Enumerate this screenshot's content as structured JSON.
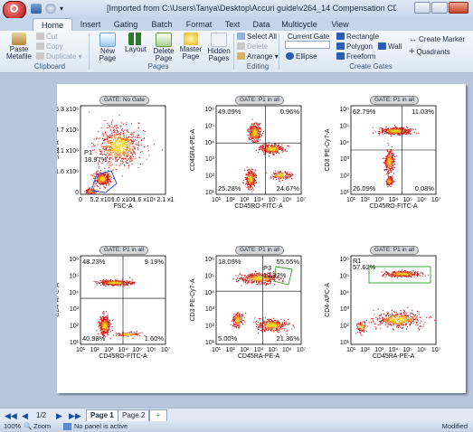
{
  "window": {
    "title": "[Imported from C:\\Users\\Tanya\\Desktop\\Accuri guide\\v264_14 Compensation CD45RO-RA-3-4.c6]"
  },
  "tabs": [
    "Home",
    "Insert",
    "Gating",
    "Batch",
    "Format",
    "Text",
    "Data",
    "Multicycle",
    "View"
  ],
  "ribbon": {
    "clipboard": {
      "paste": "Paste",
      "metafile": "Metafile",
      "cut": "Cut",
      "copy": "Copy",
      "duplicate": "Duplicate",
      "label": "Clipboard"
    },
    "pages": {
      "new_page": "New",
      "new_page2": "Page",
      "layout": "Layout",
      "delete_page": "Delete",
      "delete_page2": "Page",
      "master_page": "Master",
      "master_page2": "Page",
      "hidden_pages": "Hidden",
      "hidden_pages2": "Pages",
      "label": "Pages"
    },
    "editing": {
      "select_all": "Select All",
      "delete": "Delete",
      "arrange": "Arrange",
      "label": "Editing"
    },
    "create_gates": {
      "current_gate": "Current Gate",
      "rectangle": "Rectangle",
      "polygon": "Polygon",
      "wall": "Wall",
      "ellipse": "Ellipse",
      "freeform": "Freeform",
      "create_marker": "Create Marker",
      "quadrants": "Quadrants",
      "label": "Create Gates"
    }
  },
  "plots": [
    {
      "gate": "GATE: No Gate",
      "xlabel": "FSC-A",
      "ylabel": "SSC-A",
      "yticks": [
        "6.3 x10⁶",
        "4.7 x10⁶",
        "3.1 x10⁶",
        "1.6 x10⁶",
        "0"
      ],
      "xticks": [
        "0",
        "5.2 x10⁶",
        "1.0 x10⁶",
        "1.6 x10⁶",
        "2.1 x1"
      ],
      "region_name": "P1",
      "region_pct": "18.97%",
      "quads": []
    },
    {
      "gate": "GATE: P1 in all",
      "xlabel": "CD45RO-FITC-A",
      "ylabel": "CD45RA-PE-A",
      "yticks": [
        "10⁶",
        "10⁵",
        "10⁴",
        "10³",
        "10²",
        "10¹"
      ],
      "xticks": [
        "10¹",
        "10²",
        "10³",
        "10⁴",
        "10⁵",
        "10⁶",
        "10⁷"
      ],
      "quads": [
        "49.09%",
        "0.96%",
        "25.28%",
        "24.67%"
      ]
    },
    {
      "gate": "GATE: P1 in all",
      "xlabel": "CD45RO-FITC-A",
      "ylabel": "CD3 PE-Cy7-A",
      "yticks": [
        "10⁶",
        "10⁵",
        "10⁴",
        "10³",
        "10²",
        "10¹"
      ],
      "xticks": [
        "10¹",
        "10²",
        "10³",
        "10⁴",
        "10⁵",
        "10⁶",
        "10⁷"
      ],
      "quads": [
        "62.79%",
        "11.03%",
        "26.09%",
        "0.08%"
      ]
    },
    {
      "gate": "GATE: P1 in all",
      "xlabel": "CD45RO-FITC-A",
      "ylabel": "CD4-APC-A",
      "yticks": [
        "10⁶",
        "10⁵",
        "10⁴",
        "10³",
        "10²",
        "10¹"
      ],
      "xticks": [
        "10¹",
        "10²",
        "10³",
        "10⁴",
        "10⁵",
        "10⁶",
        "10⁷"
      ],
      "quads": [
        "48.23%",
        "9.19%",
        "40.98%",
        "1.60%"
      ]
    },
    {
      "gate": "GATE: P1 in all",
      "xlabel": "CD45RA-PE-A",
      "ylabel": "CD3 PE-Cy7-A",
      "yticks": [
        "10⁶",
        "10⁵",
        "10⁴",
        "10³",
        "10²",
        "10¹"
      ],
      "xticks": [
        "10¹",
        "10²",
        "10³",
        "10⁴",
        "10⁵",
        "10⁶",
        "10⁷"
      ],
      "quads": [
        "18.09%",
        "55.55%",
        "5.00%",
        "21.36%"
      ],
      "region_name": "P3",
      "region_pct": "12.32%"
    },
    {
      "gate": "GATE: P1 in all",
      "xlabel": "CD45RA-PE-A",
      "ylabel": "CD4-APC-A",
      "yticks": [
        "10⁶",
        "10⁵",
        "10⁴",
        "10³",
        "10²",
        "10¹"
      ],
      "xticks": [
        "10¹",
        "10²",
        "10³",
        "10⁴",
        "10⁵",
        "10⁶",
        "10⁷"
      ],
      "quads": [],
      "region_name": "R1",
      "region_pct": "57.62%"
    }
  ],
  "pages": {
    "counter": "1/2",
    "tabs": [
      "Page 1",
      "Page 2"
    ]
  },
  "status": {
    "zoom": "100%",
    "zoom_label": "Zoom",
    "panel": "No panel is active",
    "modified": "Modified"
  },
  "colors": {
    "accent": "#2b579a",
    "gate_blue": "#3b4fd0",
    "gate_green": "#2aa12a",
    "dot_red": "#d31a1a"
  }
}
